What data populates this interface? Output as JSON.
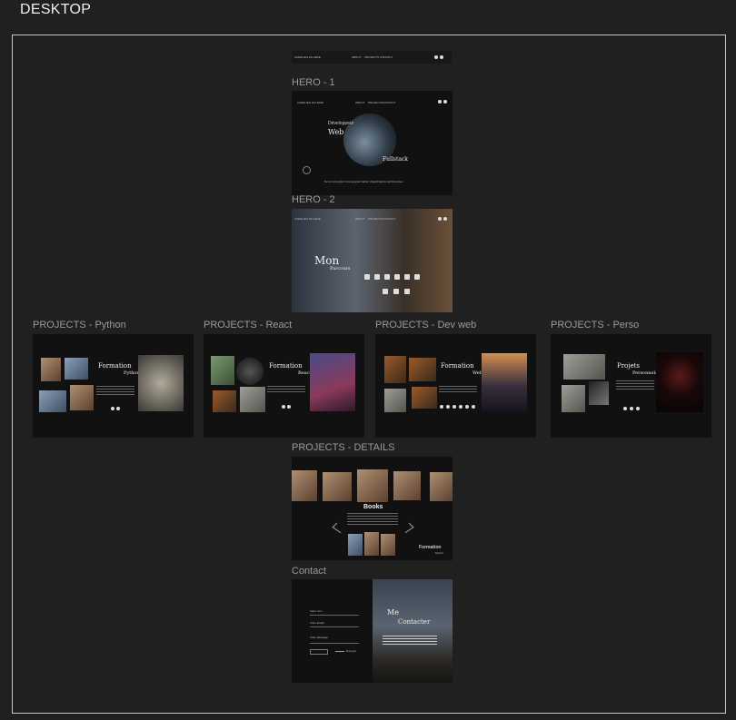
{
  "page": {
    "label": "DESKTOP"
  },
  "nav": {
    "brand": "AURELIEN FILLIERE",
    "links": [
      "ABOUT",
      "PROJECTS",
      "CONTACT"
    ]
  },
  "frames": {
    "hero1": {
      "label": "HERO - 1",
      "line1": "Développeur",
      "line2": "Web",
      "line3": "Fullstack",
      "tagline": "De la conception à la programmation d'applications performantes"
    },
    "hero2": {
      "label": "HERO - 2",
      "title": "Mon",
      "subtitle": "Parcours"
    },
    "python": {
      "label": "PROJECTS - Python",
      "title": "Formation",
      "subtitle": "Python"
    },
    "react": {
      "label": "PROJECTS - React",
      "title": "Formation",
      "subtitle": "React"
    },
    "devweb": {
      "label": "PROJECTS - Dev web",
      "title": "Formation",
      "subtitle": "Web"
    },
    "perso": {
      "label": "PROJECTS - Perso",
      "title": "Projets",
      "subtitle": "Personnels"
    },
    "details": {
      "label": "PROJECTS - DETAILS",
      "title": "Books",
      "footer_title": "Formation",
      "footer_sub": "Python"
    },
    "contact": {
      "label": "Contact",
      "title1": "Me",
      "title2": "Contacter",
      "fields": [
        "Votre nom",
        "Votre Email",
        "Votre Message"
      ],
      "send": "Envoyer"
    }
  }
}
